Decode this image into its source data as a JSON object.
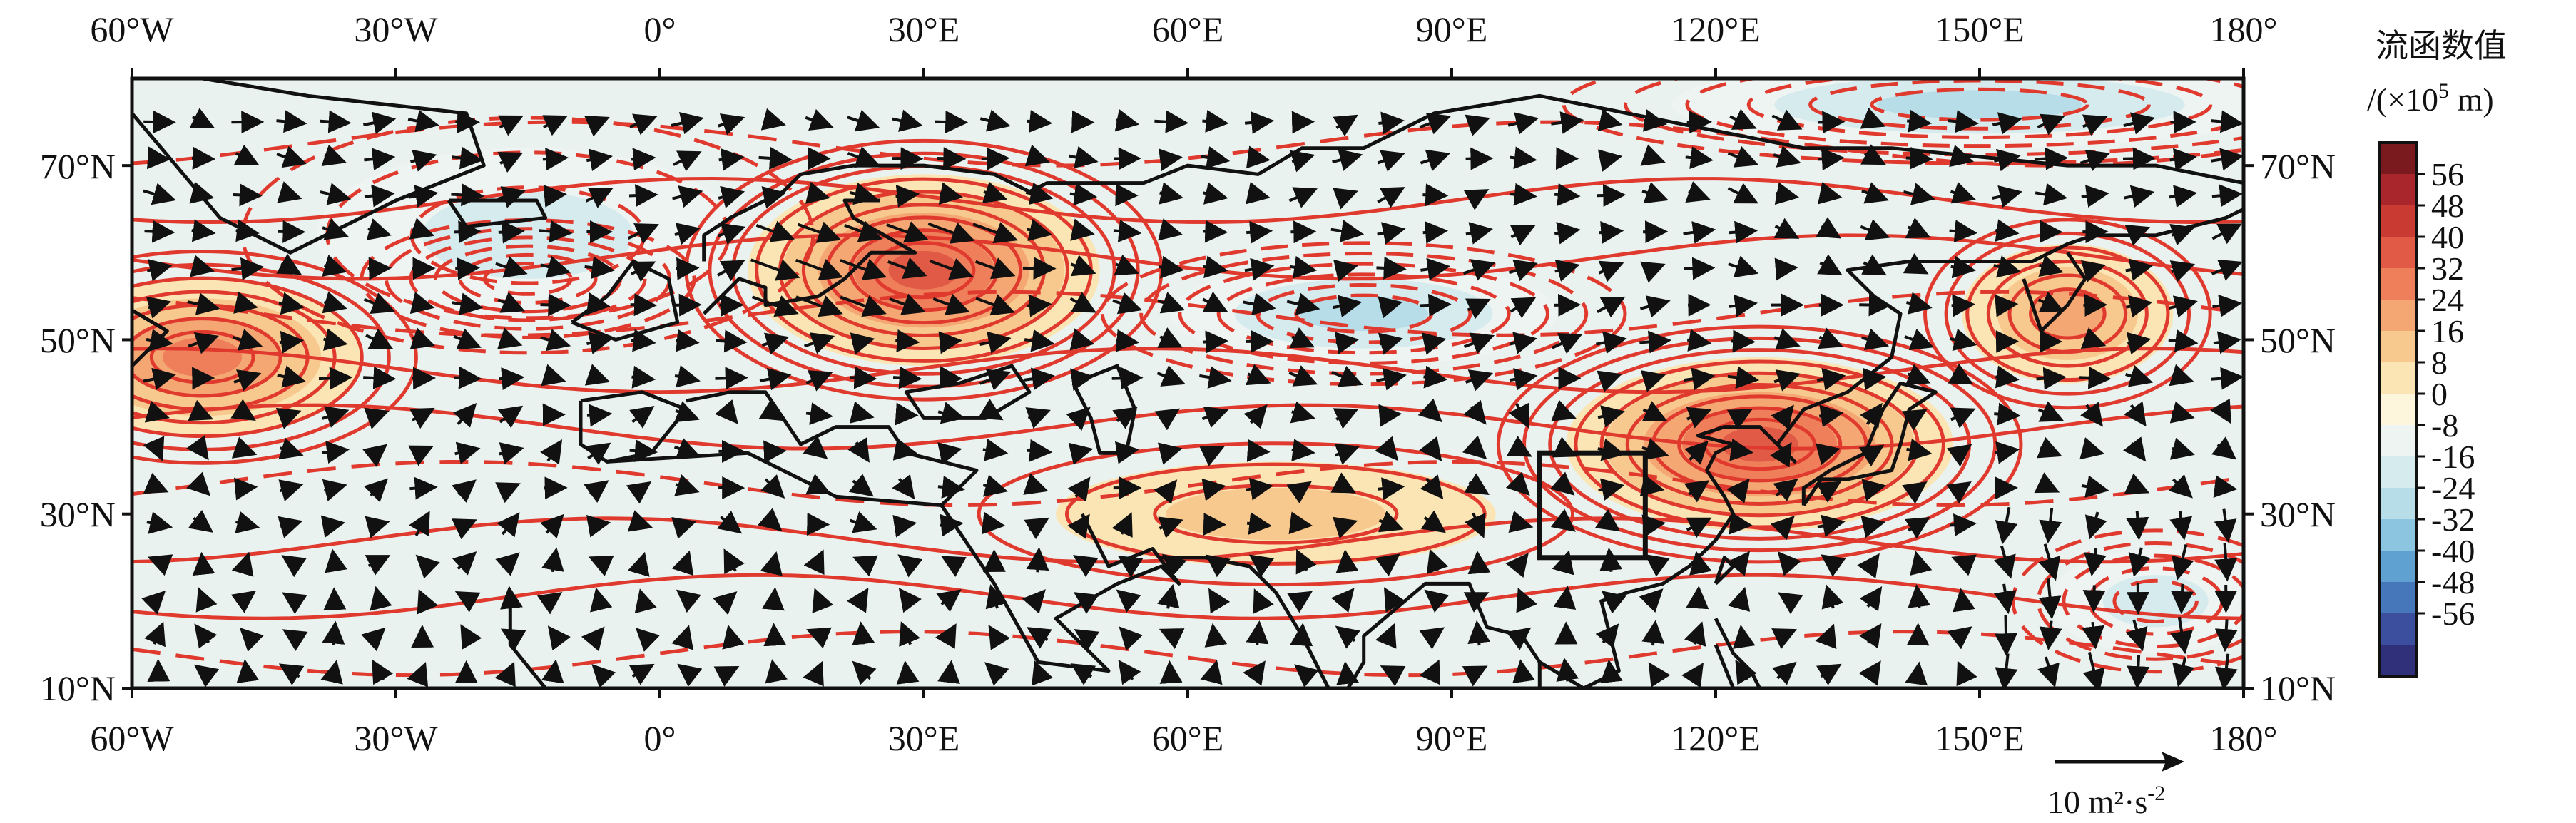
{
  "map": {
    "lon_labels": [
      "60°W",
      "30°W",
      "0°",
      "30°E",
      "60°E",
      "90°E",
      "120°E",
      "150°E",
      "180°"
    ],
    "lat_labels": [
      "10°N",
      "30°N",
      "50°N",
      "70°N"
    ],
    "lon_extent": [
      -60,
      180
    ],
    "lat_extent": [
      10,
      80
    ],
    "highlight_box": {
      "lon": [
        100,
        112
      ],
      "lat": [
        25,
        37
      ]
    },
    "contour_color": "#e03a2f",
    "coast_color": "#111111"
  },
  "colorbar": {
    "title": "流函数值",
    "unit_prefix": "/(×10",
    "unit_exp": "5",
    "unit_suffix": " m)",
    "tick_labels": [
      "56",
      "48",
      "40",
      "32",
      "24",
      "16",
      "8",
      "0",
      "-8",
      "-16",
      "-24",
      "-32",
      "-40",
      "-48",
      "-56"
    ],
    "colors": [
      "#7a1a1e",
      "#a8262c",
      "#c93a33",
      "#e05a45",
      "#ee7f5a",
      "#f4a673",
      "#f8c98e",
      "#fbe5b4",
      "#fdf6dd",
      "#eef4f2",
      "#d6ebee",
      "#b7dde8",
      "#8cc5e0",
      "#5fa2d2",
      "#4777bb",
      "#3c4f9e",
      "#2f2f7a"
    ]
  },
  "reference_vector": {
    "value": "10",
    "unit": " m²·s",
    "unit_exp": "-2"
  },
  "fill_regions": [
    {
      "lon": -52,
      "lat": 48,
      "rx": 18,
      "ry": 9,
      "level": 32
    },
    {
      "lon": -15,
      "lat": 57,
      "rx": 14,
      "ry": 5,
      "level": -24
    },
    {
      "lon": -15,
      "lat": 62,
      "rx": 24,
      "ry": 10,
      "level": -8
    },
    {
      "lon": 30,
      "lat": 58,
      "rx": 20,
      "ry": 11,
      "level": 40
    },
    {
      "lon": 80,
      "lat": 53,
      "rx": 22,
      "ry": 6,
      "level": -24
    },
    {
      "lon": 70,
      "lat": 30,
      "rx": 25,
      "ry": 6,
      "level": 8
    },
    {
      "lon": 125,
      "lat": 38,
      "rx": 22,
      "ry": 10,
      "level": 40
    },
    {
      "lon": 160,
      "lat": 53,
      "rx": 12,
      "ry": 8,
      "level": 24
    },
    {
      "lon": 170,
      "lat": 20,
      "rx": 12,
      "ry": 6,
      "level": -16
    },
    {
      "lon": 150,
      "lat": 77,
      "rx": 35,
      "ry": 5,
      "level": -24
    }
  ]
}
